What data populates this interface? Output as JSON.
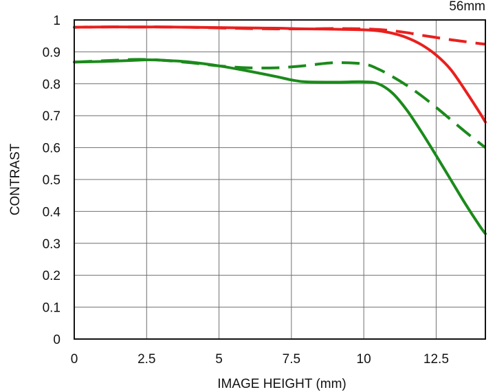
{
  "chart_data": {
    "type": "line",
    "title": "56mm",
    "xlabel": "IMAGE HEIGHT (mm)",
    "ylabel": "CONTRAST",
    "xlim": [
      0,
      14.2
    ],
    "ylim": [
      0,
      1
    ],
    "xticks": [
      0,
      2.5,
      5,
      7.5,
      10,
      12.5
    ],
    "xtick_labels": [
      "0",
      "2.5",
      "5",
      "7.5",
      "10",
      "12.5"
    ],
    "yticks": [
      0,
      0.1,
      0.2,
      0.3,
      0.4,
      0.5,
      0.6,
      0.7,
      0.8,
      0.9,
      1
    ],
    "ytick_labels": [
      "0",
      "0.1",
      "0.2",
      "0.3",
      "0.4",
      "0.5",
      "0.6",
      "0.7",
      "0.8",
      "0.9",
      "1"
    ],
    "grid": true,
    "legend": "none",
    "series": [
      {
        "color": "#e8201e",
        "dash": "solid",
        "x": [
          0,
          1,
          2,
          2.5,
          3,
          4,
          5,
          6,
          7,
          7.5,
          8,
          9,
          10,
          10.5,
          11,
          11.5,
          12,
          12.5,
          13,
          13.5,
          14,
          14.2
        ],
        "y": [
          0.977,
          0.978,
          0.978,
          0.978,
          0.978,
          0.977,
          0.976,
          0.975,
          0.974,
          0.973,
          0.972,
          0.971,
          0.969,
          0.966,
          0.958,
          0.944,
          0.922,
          0.89,
          0.845,
          0.78,
          0.71,
          0.68
        ]
      },
      {
        "color": "#e8201e",
        "dash": "dashed",
        "x": [
          0,
          1,
          2,
          2.5,
          3,
          4,
          5,
          6,
          7,
          7.5,
          8,
          9,
          10,
          10.5,
          11,
          11.5,
          12,
          12.5,
          13,
          13.5,
          14,
          14.2
        ],
        "y": [
          0.977,
          0.978,
          0.978,
          0.978,
          0.978,
          0.977,
          0.975,
          0.973,
          0.972,
          0.972,
          0.972,
          0.973,
          0.972,
          0.97,
          0.966,
          0.96,
          0.952,
          0.945,
          0.938,
          0.932,
          0.926,
          0.924
        ]
      },
      {
        "color": "#1b8a1b",
        "dash": "solid",
        "x": [
          0,
          1,
          2,
          2.5,
          3,
          4,
          5,
          6,
          7,
          7.5,
          8,
          9,
          10,
          10.5,
          11,
          11.5,
          12,
          12.5,
          13,
          13.5,
          14,
          14.2
        ],
        "y": [
          0.868,
          0.87,
          0.873,
          0.875,
          0.874,
          0.868,
          0.856,
          0.84,
          0.822,
          0.812,
          0.806,
          0.805,
          0.806,
          0.8,
          0.77,
          0.716,
          0.648,
          0.575,
          0.5,
          0.425,
          0.355,
          0.33
        ]
      },
      {
        "color": "#1b8a1b",
        "dash": "dashed",
        "x": [
          0,
          1,
          2,
          2.5,
          3,
          4,
          5,
          6,
          7,
          7.5,
          8,
          9,
          10,
          10.5,
          11,
          11.5,
          12,
          12.5,
          13,
          13.5,
          14,
          14.2
        ],
        "y": [
          0.868,
          0.872,
          0.876,
          0.876,
          0.874,
          0.866,
          0.856,
          0.85,
          0.85,
          0.853,
          0.857,
          0.866,
          0.862,
          0.846,
          0.822,
          0.794,
          0.762,
          0.726,
          0.688,
          0.65,
          0.614,
          0.6
        ]
      }
    ]
  }
}
